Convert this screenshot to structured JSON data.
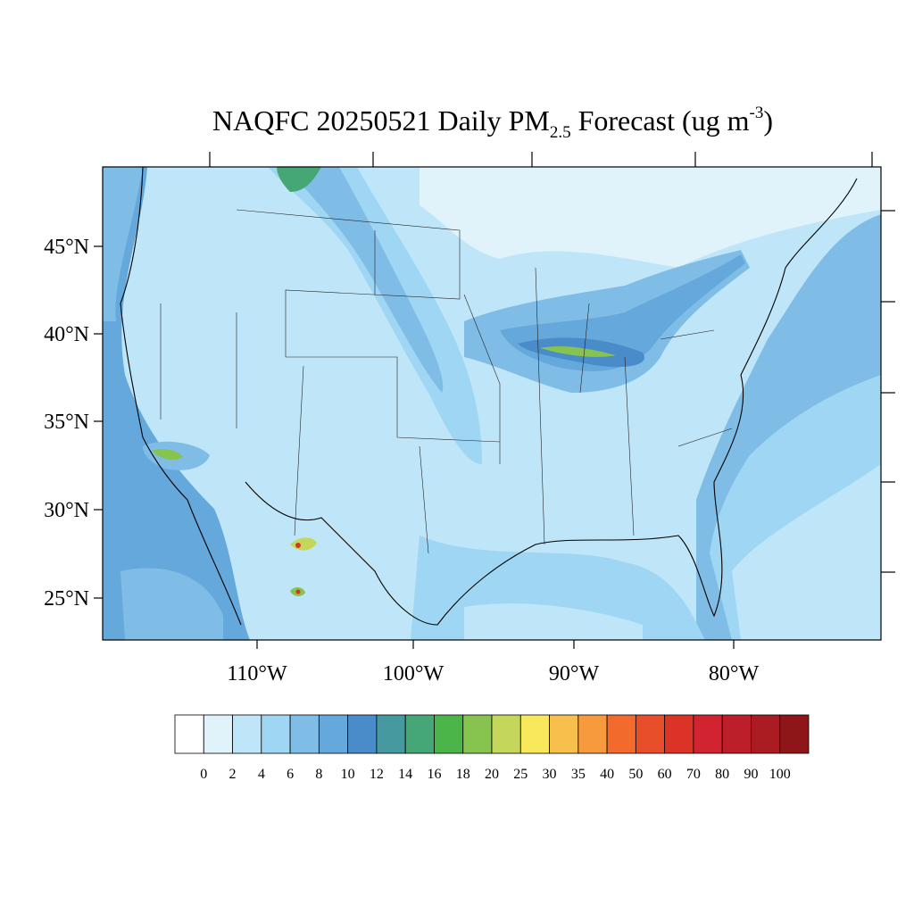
{
  "title": {
    "main": "NAQFC 20250521 Daily PM",
    "subscript": "2.5",
    "middle": " Forecast (ug m",
    "superscript": "-3",
    "end": ")"
  },
  "lat_labels": [
    "45°N",
    "40°N",
    "35°N",
    "30°N",
    "25°N"
  ],
  "lon_labels": [
    "110°W",
    "100°W",
    "90°W",
    "80°W"
  ],
  "colorbar": {
    "colors": [
      "#ffffff",
      "#e0f3fb",
      "#bfe6f8",
      "#9ed6f3",
      "#80bde6",
      "#64a8dc",
      "#4a8cc9",
      "#46999e",
      "#45a775",
      "#4cb54a",
      "#86c34f",
      "#c5d75a",
      "#f7e85c",
      "#f7c04c",
      "#f69a3d",
      "#f26a2c",
      "#e94e2a",
      "#dc3327",
      "#d22330",
      "#bd1f2a",
      "#ab1c22",
      "#8e1619"
    ],
    "labels": [
      "0",
      "2",
      "4",
      "6",
      "8",
      "10",
      "12",
      "14",
      "16",
      "18",
      "20",
      "25",
      "30",
      "35",
      "40",
      "50",
      "60",
      "70",
      "80",
      "90",
      "100"
    ]
  }
}
